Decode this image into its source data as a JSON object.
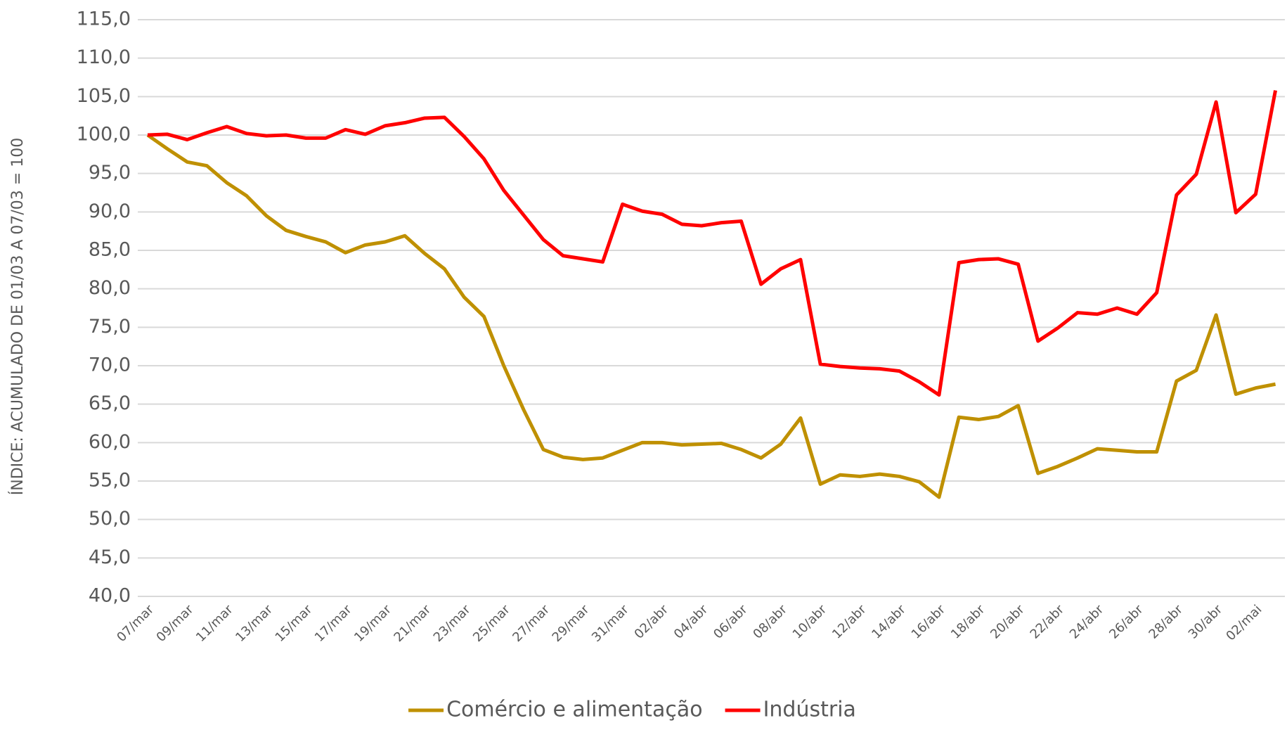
{
  "chart_data": {
    "type": "line",
    "y_axis_label": "ÍNDICE: ACUMULADO DE 01/03 A 07/03 = 100",
    "categories": [
      "07/mar",
      null,
      "09/mar",
      null,
      "11/mar",
      null,
      "13/mar",
      null,
      "15/mar",
      null,
      "17/mar",
      null,
      "19/mar",
      null,
      "21/mar",
      null,
      "23/mar",
      null,
      "25/mar",
      null,
      "27/mar",
      null,
      "29/mar",
      null,
      "31/mar",
      null,
      "02/abr",
      null,
      "04/abr",
      null,
      "06/abr",
      null,
      "08/abr",
      null,
      "10/abr",
      null,
      "12/abr",
      null,
      "14/abr",
      null,
      "16/abr",
      null,
      "18/abr",
      null,
      "20/abr",
      null,
      "22/abr",
      null,
      "24/abr",
      null,
      "26/abr",
      null,
      "28/abr",
      null,
      "30/abr",
      null,
      "02/mai",
      null
    ],
    "series": [
      {
        "name": "Comércio e alimentação",
        "color": "#BF9000",
        "values": [
          100,
          98.2,
          96.5,
          96.0,
          93.8,
          92.1,
          89.5,
          87.6,
          86.8,
          86.1,
          84.7,
          85.7,
          86.1,
          86.9,
          84.6,
          82.6,
          78.9,
          76.4,
          70.0,
          64.3,
          59.1,
          58.1,
          57.8,
          58.0,
          59.0,
          60.0,
          60.0,
          59.7,
          59.8,
          59.9,
          59.1,
          58.0,
          59.8,
          63.2,
          54.6,
          55.8,
          55.6,
          55.9,
          55.6,
          54.9,
          52.9,
          63.3,
          63.0,
          63.4,
          64.8,
          56.0,
          56.9,
          58.0,
          59.2,
          59.0,
          58.8,
          58.8,
          68.0,
          69.4,
          76.6,
          66.3,
          67.1,
          67.6
        ]
      },
      {
        "name": "Indústria",
        "color": "#FF0000",
        "values": [
          100,
          100.1,
          99.4,
          100.3,
          101.1,
          100.2,
          99.9,
          100.0,
          99.6,
          99.6,
          100.7,
          100.1,
          101.2,
          101.6,
          102.2,
          102.3,
          99.8,
          96.9,
          92.8,
          89.6,
          86.4,
          84.3,
          83.9,
          83.5,
          91.0,
          90.1,
          89.7,
          88.4,
          88.2,
          88.6,
          88.8,
          80.6,
          82.6,
          83.8,
          70.2,
          69.9,
          69.7,
          69.6,
          69.3,
          67.9,
          66.2,
          83.4,
          83.8,
          83.9,
          83.2,
          73.2,
          74.9,
          76.9,
          76.7,
          77.5,
          76.7,
          79.5,
          92.2,
          94.9,
          104.3,
          89.9,
          92.3,
          105.8
        ]
      }
    ],
    "ylim": [
      40,
      115
    ],
    "yticks": [
      {
        "value": 40,
        "label": "40,0"
      },
      {
        "value": 45,
        "label": "45,0"
      },
      {
        "value": 50,
        "label": "50,0"
      },
      {
        "value": 55,
        "label": "55,0"
      },
      {
        "value": 60,
        "label": "60,0"
      },
      {
        "value": 65,
        "label": "65,0"
      },
      {
        "value": 70,
        "label": "70,0"
      },
      {
        "value": 75,
        "label": "75,0"
      },
      {
        "value": 80,
        "label": "80,0"
      },
      {
        "value": 85,
        "label": "85,0"
      },
      {
        "value": 90,
        "label": "90,0"
      },
      {
        "value": 95,
        "label": "95,0"
      },
      {
        "value": 100,
        "label": "100,0"
      },
      {
        "value": 105,
        "label": "105,0"
      },
      {
        "value": 110,
        "label": "110,0"
      },
      {
        "value": 115,
        "label": "115,0"
      }
    ],
    "grid": true,
    "legend": "bottom"
  }
}
